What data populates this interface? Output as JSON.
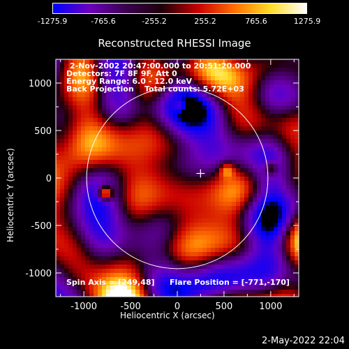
{
  "colorbar": {
    "ticks": [
      "-1275.9",
      "-765.6",
      "-255.2",
      "255.2",
      "765.6",
      "1275.9"
    ],
    "tick_values": [
      -1275.9,
      -765.6,
      -255.2,
      255.2,
      765.6,
      1275.9
    ],
    "min": -1275.9,
    "max": 1275.9
  },
  "chart_data": {
    "type": "heatmap",
    "title": "Reconstructed RHESSI Image",
    "xlabel": "Heliocentric X (arcsec)",
    "ylabel": "Heliocentric Y (arcsec)",
    "xlim": [
      -1300,
      1300
    ],
    "ylim": [
      -1250,
      1250
    ],
    "x_ticks": [
      -1000,
      -500,
      0,
      500,
      1000
    ],
    "y_ticks": [
      -1000,
      -500,
      0,
      500,
      1000
    ],
    "x_tick_labels": [
      "-1000",
      "-500",
      "0",
      "500",
      "1000"
    ],
    "y_tick_labels": [
      "-1000",
      "-500",
      "0",
      "500",
      "1000"
    ],
    "solar_limb_radius": 970,
    "flare_position": [
      -771,
      -170
    ],
    "spin_axis": [
      249,
      48
    ],
    "bright_sources": [
      {
        "x": -770,
        "y": -160,
        "value": 1275
      },
      {
        "x": 530,
        "y": 80,
        "value": 700
      },
      {
        "x": 1000,
        "y": 100,
        "value": 700
      },
      {
        "x": 30,
        "y": 760,
        "value": 650
      }
    ]
  },
  "info": {
    "line1": "2-Nov-2002 20:47:00.000 to 20:51:20.000",
    "line2": "Detectors: 7F 8F 9F, Att 0",
    "line3": "Energy Range: 6.0 - 12.0 keV",
    "line4": "Back Projection    Total counts: 5.72E+03"
  },
  "footer_left": "Spin Axis = [249,48]",
  "footer_right": "Flare Position = [-771,-170]",
  "timestamp": "2-May-2022 22:04"
}
